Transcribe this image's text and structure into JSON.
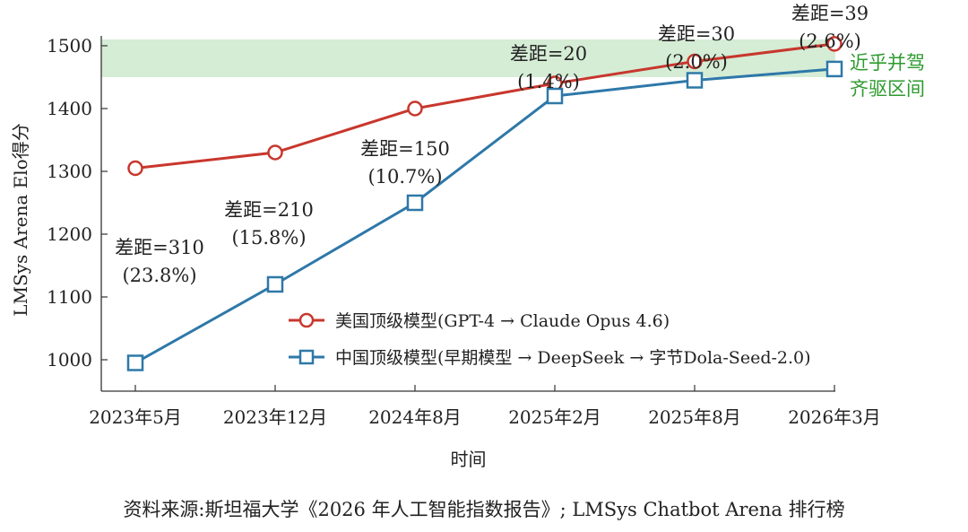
{
  "chart_data": {
    "type": "line",
    "title": "",
    "xlabel": "时间",
    "ylabel": "LMSys Arena Elo得分",
    "categories": [
      "2023年5月",
      "2023年12月",
      "2024年8月",
      "2025年2月",
      "2025年8月",
      "2026年3月"
    ],
    "ylim": [
      950,
      1510
    ],
    "yticks": [
      1000,
      1100,
      1200,
      1300,
      1400,
      1500
    ],
    "grid": false,
    "legend_position": "lower-right",
    "series": [
      {
        "name": "美国顶级模型(GPT-4 → Claude Opus 4.6)",
        "values": [
          1305,
          1330,
          1400,
          1440,
          1475,
          1503
        ],
        "color": "#c8372d",
        "marker": "circle"
      },
      {
        "name": "中国顶级模型(早期模型 → DeepSeek → 字节Dola-Seed-2.0)",
        "values": [
          995,
          1120,
          1250,
          1420,
          1445,
          1463
        ],
        "color": "#2e78a8",
        "marker": "square"
      }
    ],
    "band": {
      "from": 1450,
      "to": 1510,
      "color": "#d5ecd5",
      "label_line1": "近乎并驾",
      "label_line2": "齐驱区间",
      "label_color": "#2e9b2e"
    },
    "annotations": [
      {
        "index": 0,
        "line1": "差距=310",
        "line2": "(23.8%)"
      },
      {
        "index": 1,
        "line1": "差距=210",
        "line2": "(15.8%)"
      },
      {
        "index": 2,
        "line1": "差距=150",
        "line2": "(10.7%)"
      },
      {
        "index": 3,
        "line1": "差距=20",
        "line2": "(1.4%)"
      },
      {
        "index": 4,
        "line1": "差距=30",
        "line2": "(2.0%)"
      },
      {
        "index": 5,
        "line1": "差距=39",
        "line2": "(2.6%)"
      }
    ]
  },
  "source_note": "资料来源:斯坦福大学《2026 年人工智能指数报告》; LMSys Chatbot Arena 排行榜"
}
